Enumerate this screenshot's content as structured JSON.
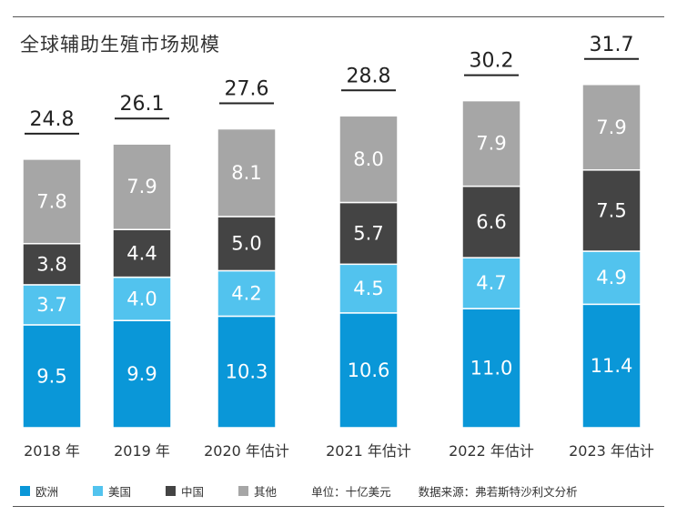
{
  "title": "全球辅助生殖市场规模",
  "unit_note": "单位：十亿美元",
  "source_note": "数据来源：弗若斯特沙利文分析",
  "colors": {
    "europe": "#0a97d8",
    "usa": "#52c3ee",
    "china": "#444444",
    "other": "#a6a6a6"
  },
  "chart_data": {
    "type": "bar",
    "stacked": true,
    "title": "全球辅助生殖市场规模",
    "xlabel": "",
    "ylabel": "",
    "ylim": [
      0,
      34
    ],
    "categories": [
      "2018 年",
      "2019 年",
      "2020 年估计",
      "2021 年估计",
      "2022 年估计",
      "2023 年估计"
    ],
    "series": [
      {
        "name": "欧洲",
        "color": "#0a97d8",
        "values": [
          9.5,
          9.9,
          10.3,
          10.6,
          11.0,
          11.4
        ]
      },
      {
        "name": "美国",
        "color": "#52c3ee",
        "values": [
          3.7,
          4.0,
          4.2,
          4.5,
          4.7,
          4.9
        ]
      },
      {
        "name": "中国",
        "color": "#444444",
        "values": [
          3.8,
          4.4,
          5.0,
          5.7,
          6.6,
          7.5
        ]
      },
      {
        "name": "其他",
        "color": "#a6a6a6",
        "values": [
          7.8,
          7.9,
          8.1,
          8.0,
          7.9,
          7.9
        ]
      }
    ],
    "totals": [
      24.8,
      26.1,
      27.6,
      28.8,
      30.2,
      31.7
    ],
    "value_labels": [
      [
        "9.5",
        "9.9",
        "10.3",
        "10.6",
        "11.0",
        "11.4"
      ],
      [
        "3.7",
        "4.0",
        "4.2",
        "4.5",
        "4.7",
        "4.9"
      ],
      [
        "3.8",
        "4.4",
        "5.0",
        "5.7",
        "6.6",
        "7.5"
      ],
      [
        "7.8",
        "7.9",
        "8.1",
        "8.0",
        "7.9",
        "7.9"
      ]
    ],
    "total_labels": [
      "24.8",
      "26.1",
      "27.6",
      "28.8",
      "30.2",
      "31.7"
    ],
    "legend": {
      "position": "bottom",
      "entries": [
        "欧洲",
        "美国",
        "中国",
        "其他"
      ]
    },
    "grid": false
  }
}
